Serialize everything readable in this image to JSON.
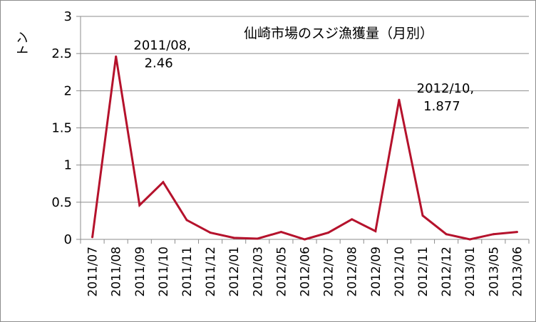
{
  "chart_data": {
    "type": "line",
    "title": "仙崎市場のスジ漁獲量（月別）",
    "ylabel": "トン",
    "ylim": [
      0,
      3
    ],
    "yticks": [
      {
        "value": 0,
        "label": "0"
      },
      {
        "value": 0.5,
        "label": "0.5"
      },
      {
        "value": 1,
        "label": "1"
      },
      {
        "value": 1.5,
        "label": "1.5"
      },
      {
        "value": 2,
        "label": "2"
      },
      {
        "value": 2.5,
        "label": "2.5"
      },
      {
        "value": 3,
        "label": "3"
      }
    ],
    "grid": true,
    "legend": "none",
    "color": "#b5122c",
    "categories": [
      "2011/07",
      "2011/08",
      "2011/09",
      "2011/10",
      "2011/11",
      "2011/12",
      "2012/01",
      "2012/03",
      "2012/05",
      "2012/06",
      "2012/07",
      "2012/08",
      "2012/09",
      "2012/10",
      "2012/11",
      "2012/12",
      "2013/01",
      "2013/05",
      "2013/06"
    ],
    "values": [
      0.03,
      2.46,
      0.46,
      0.77,
      0.26,
      0.09,
      0.02,
      0.01,
      0.1,
      0.0,
      0.09,
      0.27,
      0.11,
      1.877,
      0.32,
      0.07,
      0.0,
      0.07,
      0.1
    ],
    "annotations": [
      {
        "index": 1,
        "line1": "2011/08,",
        "line2": "2.46"
      },
      {
        "index": 13,
        "line1": "2012/10,",
        "line2": "1.877"
      }
    ]
  }
}
